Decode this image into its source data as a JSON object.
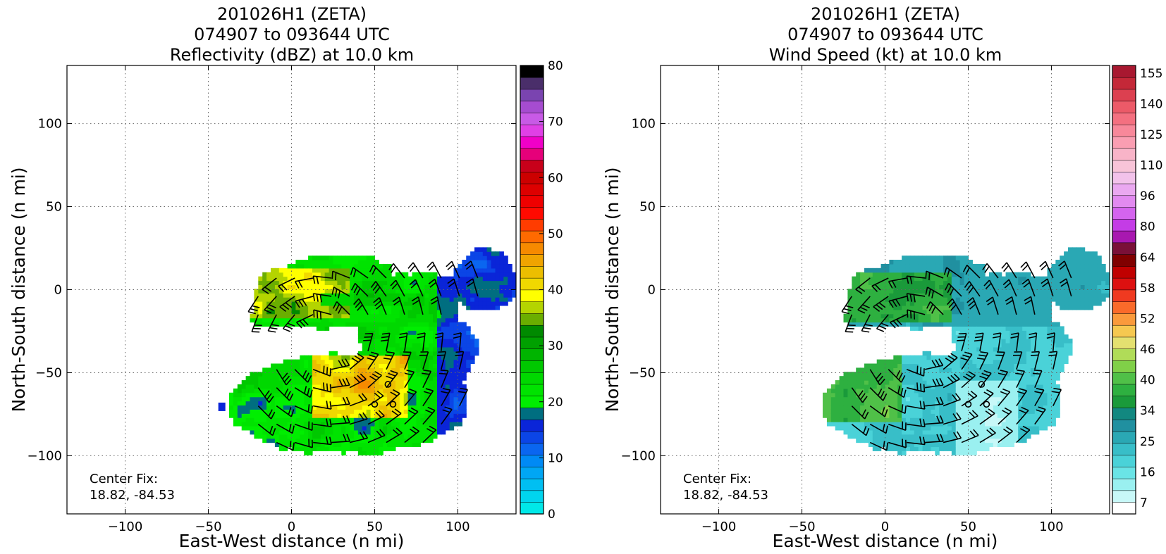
{
  "colors": {
    "reflectivity": [
      "#00e8e8",
      "#00d5ee",
      "#00bff2",
      "#00a6f4",
      "#008af5",
      "#0a66f0",
      "#0b45e6",
      "#0a25d8",
      "#006e80",
      "#00ee00",
      "#00e300",
      "#00d800",
      "#00c800",
      "#00b400",
      "#00a000",
      "#008a00",
      "#6aae00",
      "#b4d400",
      "#ffff00",
      "#f0d800",
      "#ecbe00",
      "#f0a400",
      "#f68a00",
      "#ff6a00",
      "#ff3c00",
      "#ff0a00",
      "#ef0000",
      "#dd0000",
      "#cc0000",
      "#c8001a",
      "#e6007a",
      "#f000c8",
      "#e040e6",
      "#c85ae6",
      "#a64cd0",
      "#7a44b0",
      "#4a2e6a",
      "#000000"
    ],
    "wind": [
      "#ffffff",
      "#c8f8f8",
      "#9af0f0",
      "#6ae4e6",
      "#4ad2d8",
      "#38bec8",
      "#2aa8b4",
      "#2090a0",
      "#128880",
      "#1a9a3a",
      "#2eb040",
      "#50c048",
      "#80d048",
      "#b0dc58",
      "#e4e070",
      "#f6c850",
      "#fa9a3c",
      "#fa6a2a",
      "#f03a20",
      "#dd1010",
      "#c00000",
      "#800000",
      "#7a1038",
      "#a818b0",
      "#c43ce6",
      "#d464ee",
      "#e28af0",
      "#eaa8f0",
      "#f2c2ea",
      "#f8c4d8",
      "#f8b4c8",
      "#fa9eb2",
      "#f8889a",
      "#f47080",
      "#ec5a68",
      "#dc4050",
      "#c42838",
      "#a81830"
    ]
  },
  "charts": [
    {
      "title_line1": "201026H1 (ZETA)",
      "title_line2": "074907 to 093644 UTC",
      "title_line3": "Reflectivity (dBZ) at 10.0 km",
      "center_fix_label": "Center Fix:",
      "center_fix_coords": "18.82, -84.53"
    },
    {
      "title_line1": "201026H1 (ZETA)",
      "title_line2": "074907 to 093644 UTC",
      "title_line3": "Wind Speed (kt) at 10.0 km",
      "center_fix_label": "Center Fix:",
      "center_fix_coords": "18.82, -84.53"
    }
  ],
  "chart_data": [
    {
      "type": "heatmap",
      "variable": "Reflectivity (dBZ)",
      "xlabel": "East-West distance (n mi)",
      "ylabel": "North-South distance (n mi)",
      "xlim": [
        -135,
        135
      ],
      "ylim": [
        -135,
        135
      ],
      "xticks": [
        -100,
        -50,
        0,
        50,
        100
      ],
      "yticks": [
        -100,
        -50,
        0,
        50,
        100
      ],
      "grid": true,
      "colorbar": {
        "ticks": [
          0,
          10,
          20,
          30,
          40,
          50,
          60,
          70,
          80
        ],
        "min": 0,
        "max": 80
      },
      "center_fix": {
        "lat": 18.82,
        "lon": -84.53
      }
    },
    {
      "type": "heatmap",
      "variable": "Wind Speed (kt)",
      "xlabel": "East-West distance (n mi)",
      "ylabel": "North-South distance (n mi)",
      "xlim": [
        -135,
        135
      ],
      "ylim": [
        -135,
        135
      ],
      "xticks": [
        -100,
        -50,
        0,
        50,
        100
      ],
      "yticks": [
        -100,
        -50,
        0,
        50,
        100
      ],
      "grid": true,
      "colorbar": {
        "ticks": [
          7,
          16,
          25,
          34,
          40,
          46,
          52,
          58,
          64,
          80,
          96,
          110,
          125,
          140,
          155
        ]
      },
      "center_fix": {
        "lat": 18.82,
        "lon": -84.53
      }
    }
  ]
}
